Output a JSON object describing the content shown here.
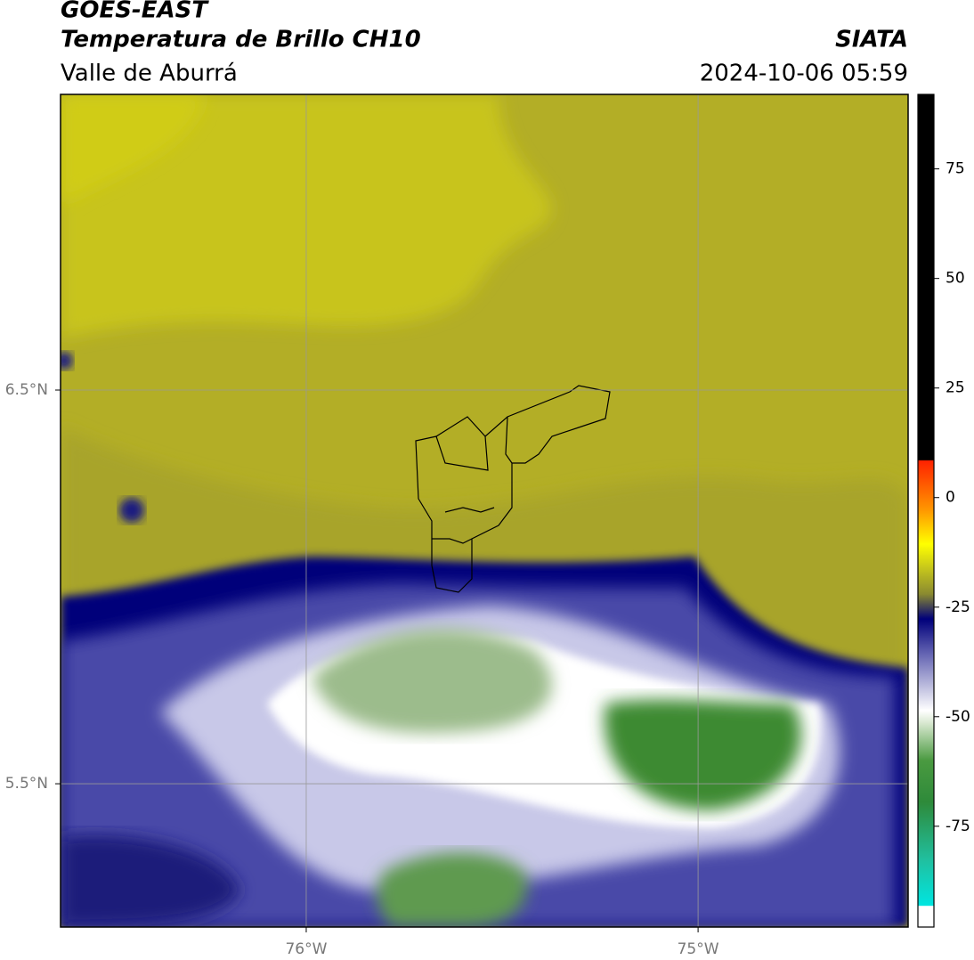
{
  "header": {
    "title": "GOES-EAST",
    "subtitle": "Temperatura de Brillo CH10",
    "region": "Valle de Aburrá",
    "source": "SIATA",
    "datetime": "2024-10-06 05:59"
  },
  "map": {
    "xlim": [
      -76.627,
      -74.464
    ],
    "ylim": [
      5.136,
      7.251
    ],
    "xticks": [
      {
        "value": -76,
        "label": "76°W"
      },
      {
        "value": -75,
        "label": "75°W"
      }
    ],
    "yticks": [
      {
        "value": 6.5,
        "label": "6.5°N"
      },
      {
        "value": 5.5,
        "label": "5.5°N"
      }
    ],
    "grid": true
  },
  "colorbar": {
    "lim": [
      -98,
      92
    ],
    "ticks": [
      75,
      50,
      25,
      0,
      -25,
      -50,
      -75
    ]
  }
}
